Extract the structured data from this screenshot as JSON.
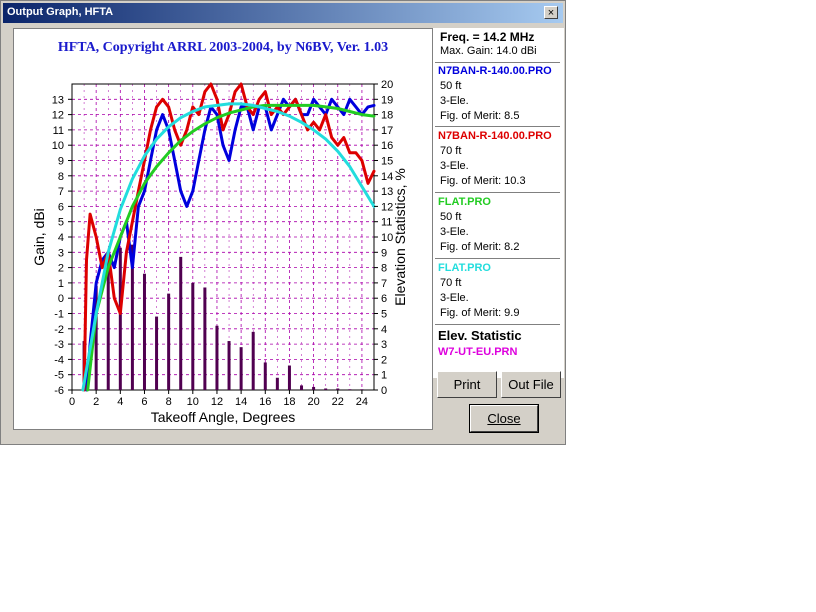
{
  "window": {
    "title": "Output Graph, HFTA",
    "close_glyph": "×"
  },
  "plot": {
    "header": "HFTA, Copyright ARRL 2003-2004, by N6BV, Ver. 1.03"
  },
  "chart_data": {
    "type": "line",
    "xlabel": "Takeoff Angle, Degrees",
    "ylabel": "Gain, dBi",
    "y2label": "Elevation Statistics, %",
    "xlim": [
      0,
      25
    ],
    "ylim": [
      -6,
      14
    ],
    "y2lim": [
      0,
      20
    ],
    "x_ticks": [
      0,
      2,
      4,
      6,
      8,
      10,
      12,
      14,
      16,
      18,
      20,
      22,
      24
    ],
    "y_ticks": [
      -6,
      -5,
      -4,
      -3,
      -2,
      -1,
      0,
      1,
      2,
      3,
      4,
      5,
      6,
      7,
      8,
      9,
      10,
      11,
      12,
      13
    ],
    "y2_ticks": [
      0,
      1,
      2,
      3,
      4,
      5,
      6,
      7,
      8,
      9,
      10,
      11,
      12,
      13,
      14,
      15,
      16,
      17,
      18,
      19,
      20
    ],
    "grid": true,
    "series": [
      {
        "name": "N7BAN-R-140.00.PRO",
        "color": "#0000dd",
        "points": [
          [
            1.2,
            -6
          ],
          [
            1.5,
            -3
          ],
          [
            2,
            1
          ],
          [
            2.5,
            2.5
          ],
          [
            3,
            3
          ],
          [
            3.5,
            2
          ],
          [
            4,
            4
          ],
          [
            4.5,
            5
          ],
          [
            5,
            2
          ],
          [
            5.5,
            6
          ],
          [
            6,
            7
          ],
          [
            6.5,
            9
          ],
          [
            7,
            11
          ],
          [
            7.5,
            12
          ],
          [
            8,
            11
          ],
          [
            8.5,
            9
          ],
          [
            9,
            7
          ],
          [
            9.5,
            6
          ],
          [
            10,
            7
          ],
          [
            10.5,
            9
          ],
          [
            11,
            11
          ],
          [
            11.5,
            12.5
          ],
          [
            12,
            12
          ],
          [
            12.5,
            10
          ],
          [
            13,
            9
          ],
          [
            13.5,
            11
          ],
          [
            14,
            12.5
          ],
          [
            14.5,
            12.5
          ],
          [
            15,
            11
          ],
          [
            15.5,
            12.5
          ],
          [
            16,
            12.5
          ],
          [
            16.5,
            11
          ],
          [
            17,
            12
          ],
          [
            17.5,
            13
          ],
          [
            18,
            12.5
          ],
          [
            18.5,
            13
          ],
          [
            19,
            12
          ],
          [
            19.5,
            12
          ],
          [
            20,
            13
          ],
          [
            20.5,
            12.5
          ],
          [
            21,
            12
          ],
          [
            21.5,
            13
          ],
          [
            22,
            12.5
          ],
          [
            22.5,
            12
          ],
          [
            23,
            13
          ],
          [
            23.5,
            12.5
          ],
          [
            24,
            12
          ],
          [
            24.5,
            12.5
          ],
          [
            25,
            12.6
          ]
        ]
      },
      {
        "name": "N7BAN-R-140.00.PRO",
        "color": "#dd0000",
        "points": [
          [
            1,
            -6
          ],
          [
            1.2,
            2.5
          ],
          [
            1.5,
            5.5
          ],
          [
            2,
            4
          ],
          [
            2.5,
            2
          ],
          [
            3,
            3
          ],
          [
            3.5,
            0
          ],
          [
            4,
            -1
          ],
          [
            4.5,
            3
          ],
          [
            5,
            5
          ],
          [
            5.5,
            7
          ],
          [
            6,
            9
          ],
          [
            6.5,
            11
          ],
          [
            7,
            12.5
          ],
          [
            7.5,
            13
          ],
          [
            8,
            12.5
          ],
          [
            8.5,
            11
          ],
          [
            9,
            10
          ],
          [
            9.5,
            11
          ],
          [
            10,
            12.5
          ],
          [
            10.5,
            12
          ],
          [
            11,
            13.5
          ],
          [
            11.5,
            14
          ],
          [
            12,
            13
          ],
          [
            12.5,
            11
          ],
          [
            13,
            12
          ],
          [
            13.5,
            13.5
          ],
          [
            14,
            14
          ],
          [
            14.5,
            12.5
          ],
          [
            15,
            12
          ],
          [
            15.5,
            13
          ],
          [
            16,
            13.5
          ],
          [
            16.5,
            12
          ],
          [
            17,
            12.5
          ],
          [
            17.5,
            12
          ],
          [
            18,
            12.5
          ],
          [
            18.5,
            13
          ],
          [
            19,
            12
          ],
          [
            19.5,
            11
          ],
          [
            20,
            11.5
          ],
          [
            20.5,
            11
          ],
          [
            21,
            12
          ],
          [
            21.5,
            10.5
          ],
          [
            22,
            10
          ],
          [
            22.5,
            10.5
          ],
          [
            23,
            9.5
          ],
          [
            23.5,
            9.5
          ],
          [
            24,
            9
          ],
          [
            24.5,
            7.5
          ],
          [
            25,
            8.3
          ]
        ]
      },
      {
        "name": "FLAT.PRO",
        "color": "#22cc22",
        "points": [
          [
            1.3,
            -6
          ],
          [
            2,
            -1
          ],
          [
            3,
            2
          ],
          [
            4,
            4
          ],
          [
            5,
            6
          ],
          [
            6,
            7.5
          ],
          [
            7,
            8.6
          ],
          [
            8,
            9.5
          ],
          [
            9,
            10.3
          ],
          [
            10,
            10.9
          ],
          [
            11,
            11.4
          ],
          [
            12,
            11.8
          ],
          [
            13,
            12.1
          ],
          [
            14,
            12.3
          ],
          [
            15,
            12.5
          ],
          [
            16,
            12.6
          ],
          [
            17,
            12.6
          ],
          [
            18,
            12.6
          ],
          [
            19,
            12.6
          ],
          [
            20,
            12.6
          ],
          [
            21,
            12.5
          ],
          [
            22,
            12.4
          ],
          [
            23,
            12.2
          ],
          [
            24,
            12
          ],
          [
            25,
            11.9
          ]
        ]
      },
      {
        "name": "FLAT.PRO",
        "color": "#22dddd",
        "points": [
          [
            0.9,
            -6
          ],
          [
            2,
            -1
          ],
          [
            3,
            3
          ],
          [
            4,
            5.8
          ],
          [
            5,
            7.8
          ],
          [
            6,
            9.3
          ],
          [
            7,
            10.4
          ],
          [
            8,
            11.2
          ],
          [
            9,
            11.8
          ],
          [
            10,
            12.2
          ],
          [
            11,
            12.5
          ],
          [
            12,
            12.6
          ],
          [
            13,
            12.7
          ],
          [
            14,
            12.7
          ],
          [
            15,
            12.6
          ],
          [
            16,
            12.4
          ],
          [
            17,
            12.2
          ],
          [
            18,
            11.9
          ],
          [
            19,
            11.5
          ],
          [
            20,
            11
          ],
          [
            21,
            10.4
          ],
          [
            22,
            9.6
          ],
          [
            23,
            8.6
          ],
          [
            24,
            7.3
          ],
          [
            25,
            6
          ]
        ]
      }
    ],
    "bars": {
      "name": "W7-UT-EU.PRN",
      "color": "#500050",
      "x": [
        1,
        2,
        3,
        4,
        5,
        6,
        7,
        8,
        9,
        10,
        11,
        12,
        13,
        14,
        15,
        16,
        17,
        18,
        19,
        20,
        21,
        22,
        23,
        24
      ],
      "values": [
        3.2,
        6.8,
        8.6,
        9.3,
        9.5,
        7.6,
        4.8,
        6.3,
        8.7,
        7,
        6.7,
        4.2,
        3.2,
        2.8,
        3.8,
        1.8,
        0.8,
        1.6,
        0.3,
        0.2,
        0.1,
        0.1,
        0.05,
        0.05
      ]
    }
  },
  "info_panel": {
    "freq": "Freq. = 14.2 MHz",
    "max_gain": "Max. Gain: 14.0 dBi",
    "entries": [
      {
        "file": "N7BAN-R-140.00.PRO",
        "color": "#0000dd",
        "height": "50 ft",
        "type": "3-Ele.",
        "merit": "Fig. of Merit:  8.5"
      },
      {
        "file": "N7BAN-R-140.00.PRO",
        "color": "#dd0000",
        "height": "70 ft",
        "type": "3-Ele.",
        "merit": "Fig. of Merit:  10.3"
      },
      {
        "file": "FLAT.PRO",
        "color": "#22cc22",
        "height": "50 ft",
        "type": "3-Ele.",
        "merit": "Fig. of Merit:  8.2"
      },
      {
        "file": "FLAT.PRO",
        "color": "#22dddd",
        "height": "70 ft",
        "type": "3-Ele.",
        "merit": "Fig. of Merit:  9.9"
      }
    ],
    "elev_title": "Elev. Statistic",
    "elev_file": "W7-UT-EU.PRN",
    "elev_color": "#dd00dd"
  },
  "buttons": {
    "print": "Print",
    "out_file": "Out File",
    "close": "Close"
  }
}
